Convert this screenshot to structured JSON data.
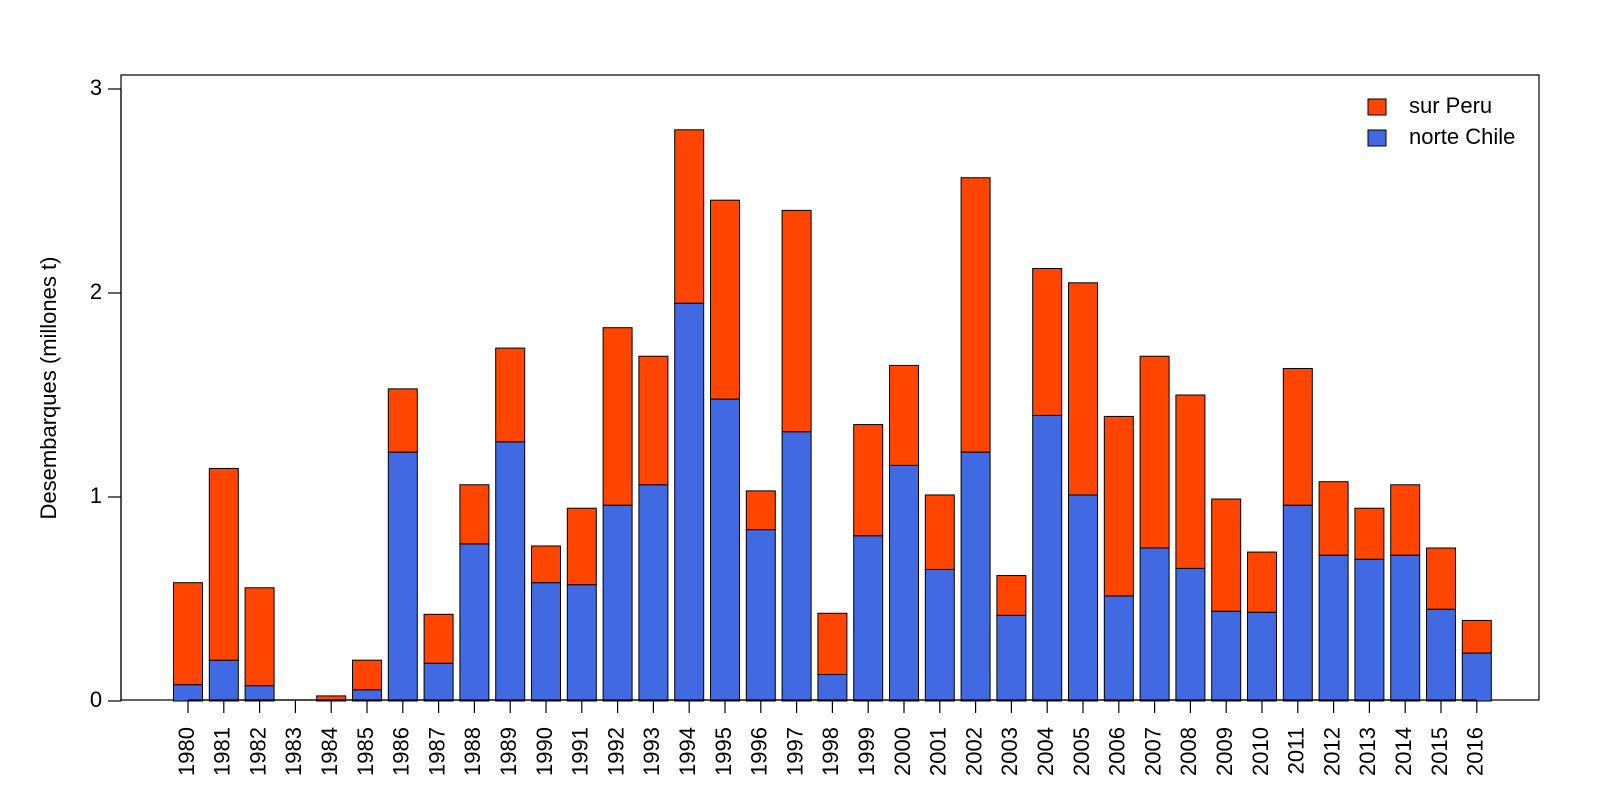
{
  "chart_data": {
    "type": "bar",
    "stacked": true,
    "title": "",
    "xlabel": "",
    "ylabel": "Desembarques (millones t)",
    "ylim": [
      0,
      3
    ],
    "yticks": [
      "0",
      "1",
      "2",
      "3"
    ],
    "legend_position": "top-right",
    "categories": [
      "1980",
      "1981",
      "1982",
      "1983",
      "1984",
      "1985",
      "1986",
      "1987",
      "1988",
      "1989",
      "1990",
      "1991",
      "1992",
      "1993",
      "1994",
      "1995",
      "1996",
      "1997",
      "1998",
      "1999",
      "2000",
      "2001",
      "2002",
      "2003",
      "2004",
      "2005",
      "2006",
      "2007",
      "2008",
      "2009",
      "2010",
      "2011",
      "2012",
      "2013",
      "2014",
      "2015",
      "2016"
    ],
    "series": [
      {
        "name": "norte Chile",
        "color": "#4169E1",
        "values": [
          0.08,
          0.2,
          0.075,
          0,
          0,
          0.055,
          1.22,
          0.185,
          0.77,
          1.27,
          0.58,
          0.57,
          0.96,
          1.06,
          1.95,
          1.48,
          0.84,
          1.32,
          0.13,
          0.81,
          1.155,
          0.645,
          1.22,
          0.42,
          1.4,
          1.01,
          0.515,
          0.75,
          0.65,
          0.44,
          0.435,
          0.96,
          0.715,
          0.695,
          0.715,
          0.45,
          0.235
        ]
      },
      {
        "name": "sur Peru",
        "color": "#FF4500",
        "values": [
          0.5,
          0.94,
          0.48,
          0,
          0.025,
          0.145,
          0.31,
          0.24,
          0.29,
          0.46,
          0.18,
          0.375,
          0.87,
          0.63,
          0.85,
          0.975,
          0.19,
          1.085,
          0.3,
          0.545,
          0.49,
          0.365,
          1.345,
          0.195,
          0.72,
          1.04,
          0.88,
          0.94,
          0.85,
          0.55,
          0.295,
          0.67,
          0.36,
          0.25,
          0.345,
          0.3,
          0.16
        ]
      }
    ]
  }
}
